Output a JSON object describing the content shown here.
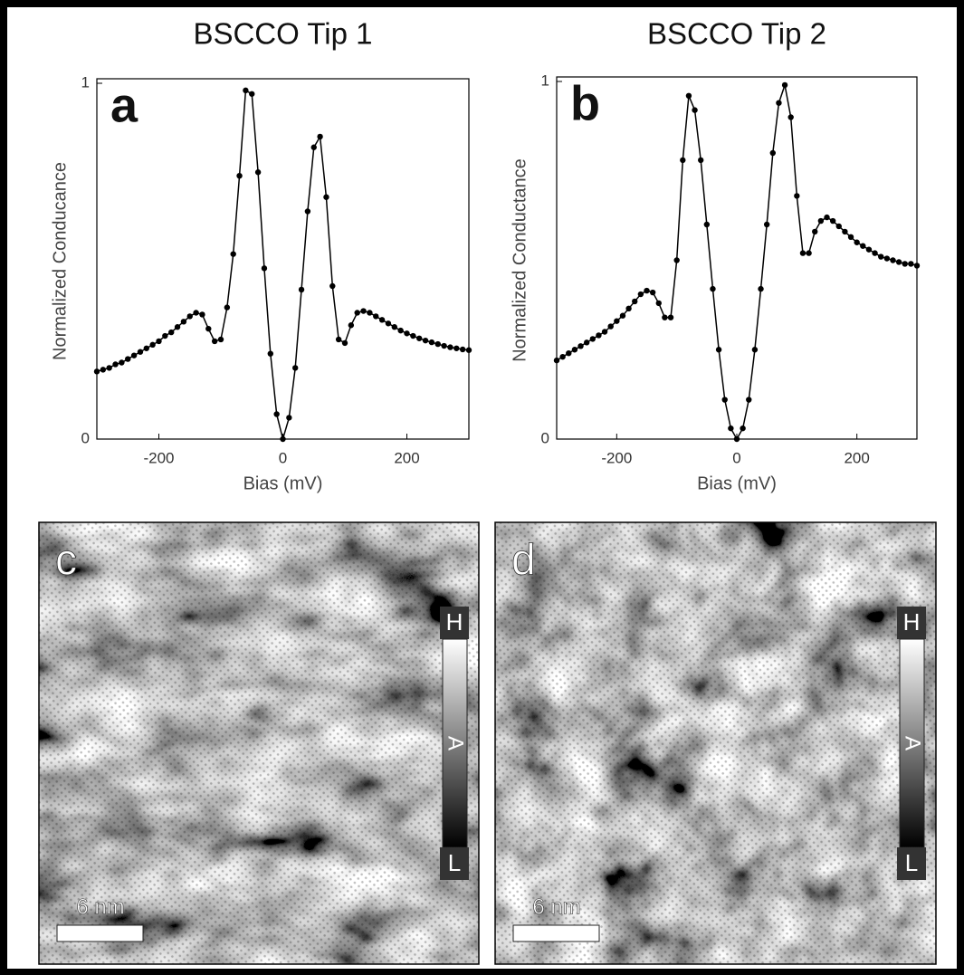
{
  "chart_data": [
    {
      "type": "line",
      "title": "BSCCO Tip 1",
      "panel_label": "a",
      "xlabel": "Bias (mV)",
      "ylabel": "Normalized Conducance",
      "x": [
        -300,
        -290,
        -280,
        -270,
        -260,
        -250,
        -240,
        -230,
        -220,
        -210,
        -200,
        -190,
        -180,
        -170,
        -160,
        -150,
        -140,
        -130,
        -120,
        -110,
        -100,
        -90,
        -80,
        -70,
        -60,
        -50,
        -40,
        -30,
        -20,
        -10,
        0,
        10,
        20,
        30,
        40,
        50,
        60,
        70,
        80,
        90,
        100,
        110,
        120,
        130,
        140,
        150,
        160,
        170,
        180,
        190,
        200,
        210,
        220,
        230,
        240,
        250,
        260,
        270,
        280,
        290,
        300
      ],
      "values": [
        0.19,
        0.195,
        0.2,
        0.21,
        0.215,
        0.225,
        0.235,
        0.245,
        0.255,
        0.265,
        0.275,
        0.29,
        0.3,
        0.315,
        0.33,
        0.345,
        0.355,
        0.35,
        0.31,
        0.275,
        0.28,
        0.37,
        0.52,
        0.74,
        0.98,
        0.97,
        0.75,
        0.48,
        0.24,
        0.07,
        0.0,
        0.06,
        0.2,
        0.42,
        0.64,
        0.82,
        0.85,
        0.68,
        0.43,
        0.28,
        0.27,
        0.32,
        0.355,
        0.36,
        0.355,
        0.345,
        0.335,
        0.325,
        0.315,
        0.305,
        0.297,
        0.29,
        0.283,
        0.277,
        0.272,
        0.267,
        0.262,
        0.258,
        0.255,
        0.252,
        0.25
      ],
      "color": "#000000",
      "xlim": [
        -300,
        300
      ],
      "ylim": [
        0,
        1
      ],
      "xticks": [
        -200,
        0,
        200
      ],
      "yticks": [
        0,
        1
      ]
    },
    {
      "type": "line",
      "title": "BSCCO Tip 2",
      "panel_label": "b",
      "xlabel": "Bias (mV)",
      "ylabel": "Normalized Conductance",
      "x": [
        -300,
        -290,
        -280,
        -270,
        -260,
        -250,
        -240,
        -230,
        -220,
        -210,
        -200,
        -190,
        -180,
        -170,
        -160,
        -150,
        -140,
        -130,
        -120,
        -110,
        -100,
        -90,
        -80,
        -70,
        -60,
        -50,
        -40,
        -30,
        -20,
        -10,
        0,
        10,
        20,
        30,
        40,
        50,
        60,
        70,
        80,
        90,
        100,
        110,
        120,
        130,
        140,
        150,
        160,
        170,
        180,
        190,
        200,
        210,
        220,
        230,
        240,
        250,
        260,
        270,
        280,
        290,
        300
      ],
      "values": [
        0.22,
        0.23,
        0.24,
        0.25,
        0.26,
        0.27,
        0.28,
        0.29,
        0.3,
        0.315,
        0.33,
        0.345,
        0.365,
        0.385,
        0.405,
        0.415,
        0.41,
        0.38,
        0.34,
        0.34,
        0.5,
        0.78,
        0.96,
        0.92,
        0.78,
        0.6,
        0.42,
        0.25,
        0.11,
        0.03,
        0.0,
        0.03,
        0.11,
        0.25,
        0.42,
        0.6,
        0.8,
        0.94,
        0.99,
        0.9,
        0.68,
        0.52,
        0.52,
        0.58,
        0.61,
        0.62,
        0.61,
        0.595,
        0.58,
        0.565,
        0.55,
        0.54,
        0.53,
        0.52,
        0.51,
        0.505,
        0.5,
        0.495,
        0.49,
        0.49,
        0.485
      ],
      "color": "#000000",
      "xlim": [
        -300,
        300
      ],
      "ylim": [
        0,
        1
      ],
      "xticks": [
        -200,
        0,
        200
      ],
      "yticks": [
        0,
        1
      ]
    }
  ],
  "images": [
    {
      "panel_label": "c",
      "scale_bar": "6 nm",
      "colorbar": {
        "high": "H",
        "mid": "A",
        "low": "L"
      }
    },
    {
      "panel_label": "d",
      "scale_bar": "6 nm",
      "colorbar": {
        "high": "H",
        "mid": "A",
        "low": "L"
      }
    }
  ]
}
